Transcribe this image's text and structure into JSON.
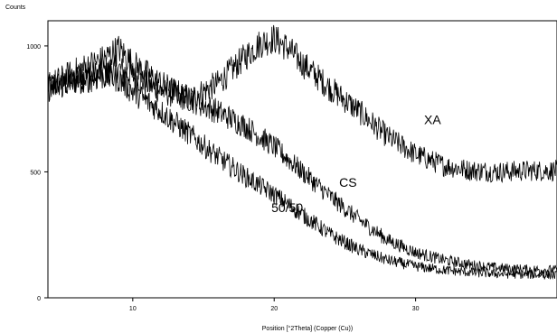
{
  "chart_data": {
    "type": "line",
    "ylabel": "Counts",
    "xlabel": "Position [°2Theta] (Copper (Cu))",
    "xlim": [
      4,
      40
    ],
    "ylim": [
      0,
      1100
    ],
    "xticks": [
      10,
      20,
      30
    ],
    "yticks": [
      0,
      500,
      1000
    ],
    "grid": false,
    "series": [
      {
        "name": "XA",
        "color": "#000000",
        "x": [
          4,
          6,
          8,
          9,
          10,
          12,
          14,
          16,
          18,
          19,
          20,
          21,
          22,
          24,
          26,
          28,
          30,
          32,
          34,
          36,
          38,
          40
        ],
        "y": [
          840,
          860,
          900,
          910,
          880,
          820,
          790,
          850,
          960,
          1010,
          1030,
          990,
          930,
          830,
          740,
          640,
          570,
          525,
          505,
          500,
          505,
          505
        ]
      },
      {
        "name": "CS",
        "color": "#000000",
        "x": [
          4,
          6,
          8,
          9,
          10,
          12,
          14,
          16,
          18,
          20,
          22,
          24,
          26,
          28,
          30,
          32,
          34,
          36,
          38,
          40
        ],
        "y": [
          840,
          900,
          950,
          990,
          930,
          850,
          790,
          740,
          680,
          600,
          500,
          400,
          310,
          230,
          180,
          150,
          130,
          118,
          112,
          110
        ]
      },
      {
        "name": "50/50",
        "color": "#000000",
        "x": [
          4,
          6,
          8,
          9,
          10,
          12,
          14,
          16,
          18,
          20,
          22,
          24,
          26,
          28,
          30,
          32,
          34,
          36,
          38,
          40
        ],
        "y": [
          830,
          860,
          880,
          870,
          820,
          740,
          650,
          560,
          480,
          410,
          330,
          250,
          190,
          150,
          125,
          110,
          100,
          95,
          92,
          90
        ]
      }
    ]
  }
}
